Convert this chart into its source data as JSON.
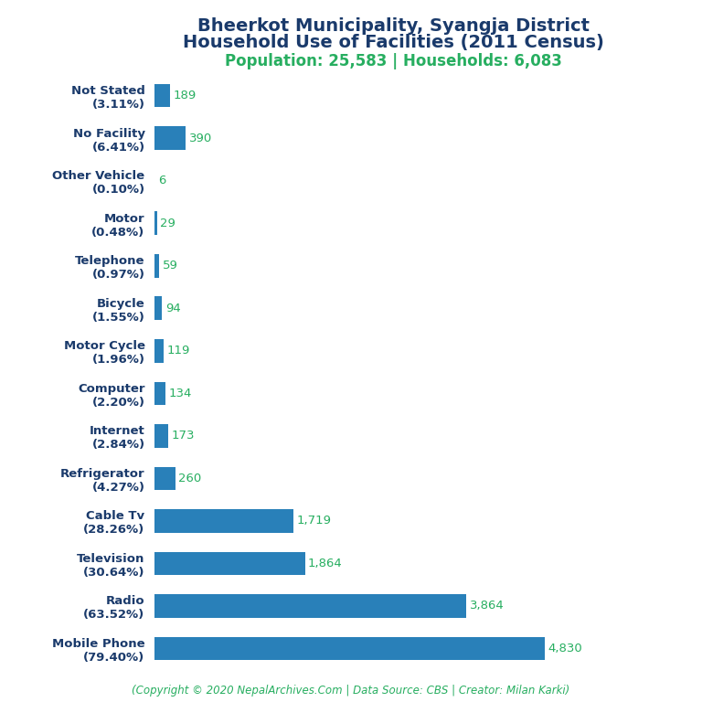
{
  "title_line1": "Bheerkot Municipality, Syangja District",
  "title_line2": "Household Use of Facilities (2011 Census)",
  "subtitle": "Population: 25,583 | Households: 6,083",
  "footer": "(Copyright © 2020 NepalArchives.Com | Data Source: CBS | Creator: Milan Karki)",
  "categories": [
    "Not Stated\n(3.11%)",
    "No Facility\n(6.41%)",
    "Other Vehicle\n(0.10%)",
    "Motor\n(0.48%)",
    "Telephone\n(0.97%)",
    "Bicycle\n(1.55%)",
    "Motor Cycle\n(1.96%)",
    "Computer\n(2.20%)",
    "Internet\n(2.84%)",
    "Refrigerator\n(4.27%)",
    "Cable Tv\n(28.26%)",
    "Television\n(30.64%)",
    "Radio\n(63.52%)",
    "Mobile Phone\n(79.40%)"
  ],
  "values": [
    189,
    390,
    6,
    29,
    59,
    94,
    119,
    134,
    173,
    260,
    1719,
    1864,
    3864,
    4830
  ],
  "bar_color": "#2980b9",
  "value_color": "#27ae60",
  "title_color": "#1a3a6b",
  "subtitle_color": "#27ae60",
  "footer_color": "#27ae60",
  "ylabel_color": "#1a3a6b",
  "background_color": "#ffffff",
  "title_fontsize": 14,
  "subtitle_fontsize": 12,
  "label_fontsize": 9.5,
  "value_fontsize": 9.5,
  "footer_fontsize": 8.5
}
